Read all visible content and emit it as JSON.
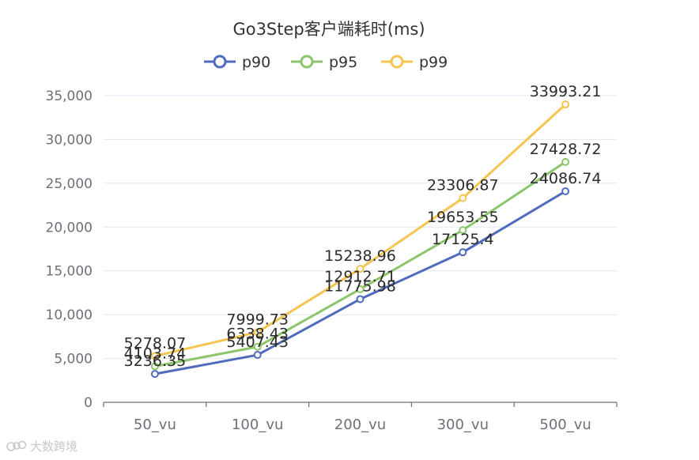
{
  "chart_data": {
    "type": "line",
    "title": "Go3Step客户端耗时(ms)",
    "categories": [
      "50_vu",
      "100_vu",
      "200_vu",
      "300_vu",
      "500_vu"
    ],
    "series": [
      {
        "name": "p90",
        "color": "#4f6bbd",
        "values": [
          3236.35,
          5407.43,
          11775.98,
          17125.4,
          24086.74
        ],
        "labels": [
          "3236.35",
          "5407.43",
          "11775.98",
          "17125.4",
          "24086.74"
        ]
      },
      {
        "name": "p95",
        "color": "#8cc56b",
        "values": [
          4103.74,
          6338.43,
          12912.71,
          19653.55,
          27428.72
        ],
        "labels": [
          "4103.74",
          "6338.43",
          "12912.71",
          "19653.55",
          "27428.72"
        ]
      },
      {
        "name": "p99",
        "color": "#f5c451",
        "values": [
          5278.07,
          7999.73,
          15238.96,
          23306.87,
          33993.21
        ],
        "labels": [
          "5278.07",
          "7999.73",
          "15238.96",
          "23306.87",
          "33993.21"
        ]
      }
    ],
    "ylim": [
      0,
      35000
    ],
    "yticks": [
      "0",
      "5,000",
      "10,000",
      "15,000",
      "20,000",
      "25,000",
      "30,000",
      "35,000"
    ],
    "legend_position": "top-center",
    "grid": true
  },
  "watermark": {
    "text": "大数跨境"
  }
}
